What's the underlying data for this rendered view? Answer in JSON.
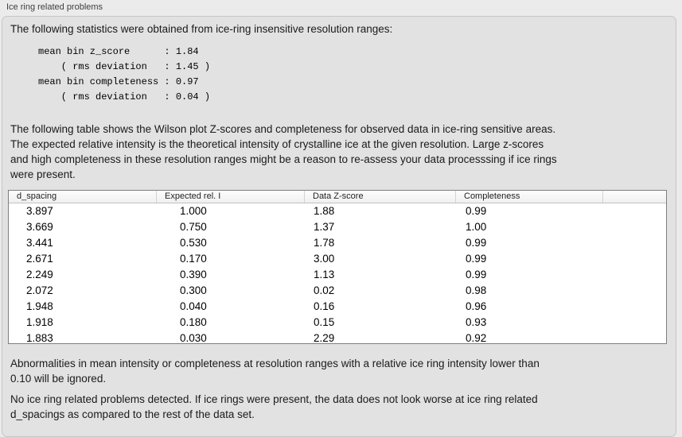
{
  "colors": {
    "page_background": "#ebebeb",
    "panel_background": "#e2e2e2",
    "table_border": "#7f7f7f",
    "table_header_background": "#f5f5f5",
    "text": "#1a1a1a"
  },
  "group": {
    "title": "Ice ring related problems"
  },
  "content": {
    "intro": "The following statistics were obtained from ice-ring insensitive resolution ranges:",
    "stats_block": "mean bin z_score      : 1.84\n    ( rms deviation   : 1.45 )\nmean bin completeness : 0.97\n    ( rms deviation   : 0.04 )",
    "table_note": "The following table shows the Wilson plot Z-scores and completeness for observed data in ice-ring sensitive areas.\nThe expected relative intensity is the theoretical intensity of crystalline ice at the given resolution. Large z-scores\nand high completeness in these resolution ranges might be a reason to re-assess your data processsing if ice rings\nwere present.",
    "ignore_note": "Abnormalities in mean intensity or completeness at resolution ranges with a relative ice ring intensity lower than\n0.10 will be ignored.",
    "conclusion": "No ice ring related problems detected. If ice rings were present, the data does not look worse at ice ring related\nd_spacings as compared to the rest of the data set."
  },
  "table": {
    "columns": [
      "d_spacing",
      "Expected rel. I",
      "Data Z-score",
      "Completeness"
    ],
    "rows": [
      {
        "d": "3.897",
        "expected": "1.000",
        "zscore": "1.88",
        "completeness": "0.99"
      },
      {
        "d": "3.669",
        "expected": "0.750",
        "zscore": "1.37",
        "completeness": "1.00"
      },
      {
        "d": "3.441",
        "expected": "0.530",
        "zscore": "1.78",
        "completeness": "0.99"
      },
      {
        "d": "2.671",
        "expected": "0.170",
        "zscore": "3.00",
        "completeness": "0.99"
      },
      {
        "d": "2.249",
        "expected": "0.390",
        "zscore": "1.13",
        "completeness": "0.99"
      },
      {
        "d": "2.072",
        "expected": "0.300",
        "zscore": "0.02",
        "completeness": "0.98"
      },
      {
        "d": "1.948",
        "expected": "0.040",
        "zscore": "0.16",
        "completeness": "0.96"
      },
      {
        "d": "1.918",
        "expected": "0.180",
        "zscore": "0.15",
        "completeness": "0.93"
      },
      {
        "d": "1.883",
        "expected": "0.030",
        "zscore": "2.29",
        "completeness": "0.92"
      }
    ]
  }
}
